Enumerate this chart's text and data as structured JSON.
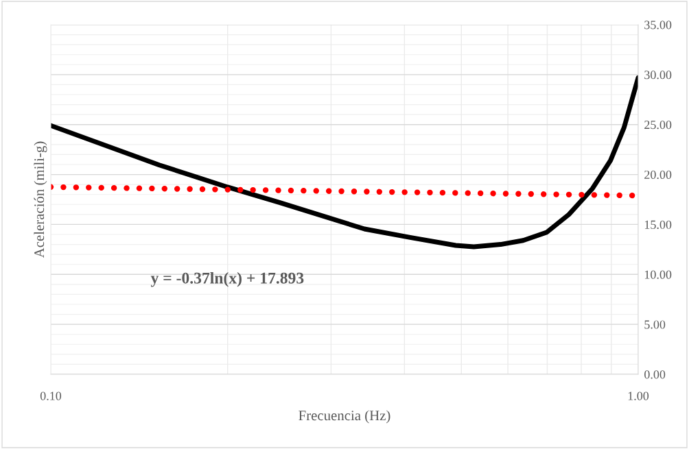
{
  "chart_data": {
    "type": "line",
    "xlabel": "Frecuencia (Hz)",
    "ylabel": "Aceleración (mili-g)",
    "log": "x",
    "series": [
      {
        "color": "#000000",
        "line_style": "solid",
        "x": [
          0.1,
          0.153,
          0.2,
          0.245,
          0.342,
          0.409,
          0.489,
          0.525,
          0.583,
          0.637,
          0.698,
          0.762,
          0.836,
          0.897,
          0.946,
          1.0
        ],
        "values": [
          24.9,
          20.95,
          18.74,
          17.2,
          14.55,
          13.7,
          12.9,
          12.77,
          13.0,
          13.4,
          14.2,
          16.0,
          18.6,
          21.4,
          24.7,
          29.7
        ]
      },
      {
        "color": "#ff0000",
        "line_style": "dotted",
        "x": [
          0.1,
          0.2,
          0.5,
          1.0
        ],
        "values": [
          18.75,
          18.49,
          18.15,
          17.89
        ]
      }
    ],
    "annotations": [
      "y = -0.37ln(x) + 17.893"
    ],
    "xlim": [
      0.1,
      1.0
    ],
    "xticks": [
      {
        "value": 0.1,
        "label": "0.10"
      },
      {
        "value": 0.2,
        "label": null
      },
      {
        "value": 0.3,
        "label": null
      },
      {
        "value": 0.4,
        "label": null
      },
      {
        "value": 0.5,
        "label": null
      },
      {
        "value": 0.6,
        "label": null
      },
      {
        "value": 0.7,
        "label": null
      },
      {
        "value": 0.8,
        "label": null
      },
      {
        "value": 0.9,
        "label": null
      },
      {
        "value": 1.0,
        "label": "1.00"
      }
    ],
    "ylim": [
      0,
      35
    ],
    "yticks": [
      {
        "value": 0,
        "label": "0.00"
      },
      {
        "value": 5,
        "label": "5.00"
      },
      {
        "value": 10,
        "label": "10.00"
      },
      {
        "value": 15,
        "label": "15.00"
      },
      {
        "value": 20,
        "label": "20.00"
      },
      {
        "value": 25,
        "label": "25.00"
      },
      {
        "value": 30,
        "label": "30.00"
      },
      {
        "value": 35,
        "label": "35.00"
      }
    ],
    "grid": true,
    "legend": false
  }
}
